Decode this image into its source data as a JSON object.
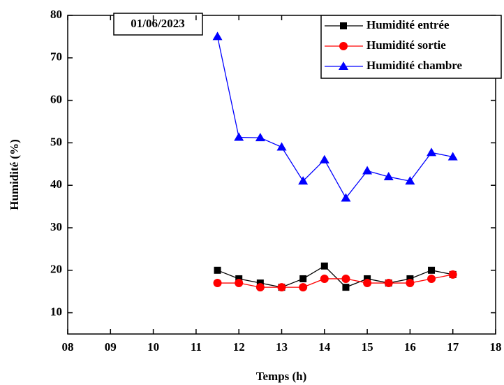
{
  "chart_data": {
    "type": "line",
    "annotation": "01/06/2023",
    "xlabel": "Temps (h)",
    "ylabel": "Humidité (%)",
    "x": [
      11.5,
      12,
      12.5,
      13,
      13.5,
      14,
      14.5,
      15,
      15.5,
      16,
      16.5,
      17
    ],
    "series": [
      {
        "name": "Humidité entrée",
        "color": "#000000",
        "marker": "square",
        "values": [
          20,
          18,
          17,
          16,
          18,
          21,
          16,
          18,
          17,
          18,
          20,
          19
        ]
      },
      {
        "name": "Humidité sortie",
        "color": "#ff0000",
        "marker": "circle",
        "values": [
          17,
          17,
          16,
          16,
          16,
          18,
          18,
          17,
          17,
          17,
          18,
          19
        ]
      },
      {
        "name": "Humidité chambre",
        "color": "#0000ff",
        "marker": "triangle",
        "values": [
          75,
          51.3,
          51.2,
          49,
          41,
          46,
          37,
          43.4,
          42,
          41,
          47.7,
          46.7
        ]
      }
    ],
    "xlim": [
      8,
      18
    ],
    "xticks": [
      {
        "value": 8,
        "label": "08"
      },
      {
        "value": 9,
        "label": "09"
      },
      10,
      11,
      12,
      13,
      14,
      15,
      16,
      17,
      18
    ],
    "ylim": [
      5,
      80
    ],
    "yticks": [
      10,
      20,
      30,
      40,
      50,
      60,
      70,
      80
    ],
    "legend": "upper right"
  }
}
